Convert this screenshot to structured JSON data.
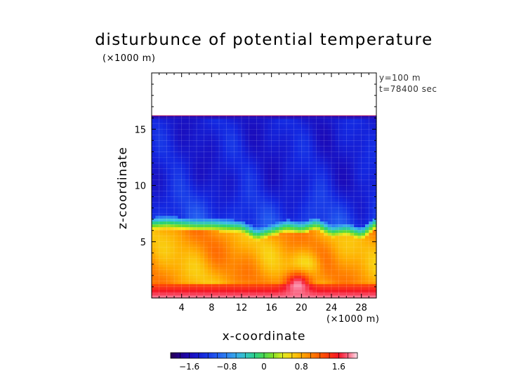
{
  "chart_data": {
    "type": "heatmap",
    "title": "disturbunce of potential temperature",
    "xlabel": "x-coordinate",
    "ylabel": "z-coordinate",
    "x_unit": "(×1000 m)",
    "z_unit": "(×1000 m)",
    "xlim": [
      0,
      30
    ],
    "ylim": [
      0,
      20
    ],
    "x_ticks": [
      4,
      8,
      12,
      16,
      20,
      24,
      28
    ],
    "y_ticks": [
      5,
      10,
      15
    ],
    "annotations": [
      "y=100 m",
      "t=78400 sec"
    ],
    "colorbar": {
      "min": -2.0,
      "max": 2.0,
      "ticks": [
        -1.6,
        -0.8,
        0,
        0.8,
        1.6
      ],
      "tick_labels": [
        "−1.6",
        "−0.8",
        "0",
        "0.8",
        "1.6"
      ]
    },
    "field_top_z": 16.2,
    "interface_z_profile": {
      "x": [
        0,
        2,
        4,
        6,
        8,
        10,
        12,
        14,
        16,
        18,
        20,
        22,
        24,
        26,
        28,
        30
      ],
      "z": [
        6.8,
        6.9,
        6.8,
        6.7,
        6.7,
        6.6,
        6.5,
        5.8,
        6.2,
        6.6,
        6.4,
        6.8,
        6.1,
        6.3,
        5.9,
        6.9
      ]
    },
    "layers": [
      {
        "z_range": [
          6.8,
          16.2
        ],
        "value_range": [
          -1.5,
          -1.1
        ]
      },
      {
        "z_range": [
          5.5,
          6.8
        ],
        "value_range": [
          -0.6,
          0.4
        ]
      },
      {
        "z_range": [
          1.0,
          5.5
        ],
        "value_range": [
          0.6,
          1.3
        ]
      },
      {
        "z_range": [
          0,
          1.0
        ],
        "value_range": [
          1.5,
          2.0
        ]
      }
    ],
    "features": [
      {
        "x": 20.5,
        "z": 3.0,
        "value": 0.5
      },
      {
        "x": 19.5,
        "z": 1.2,
        "value": 1.9
      }
    ],
    "grid": true
  }
}
